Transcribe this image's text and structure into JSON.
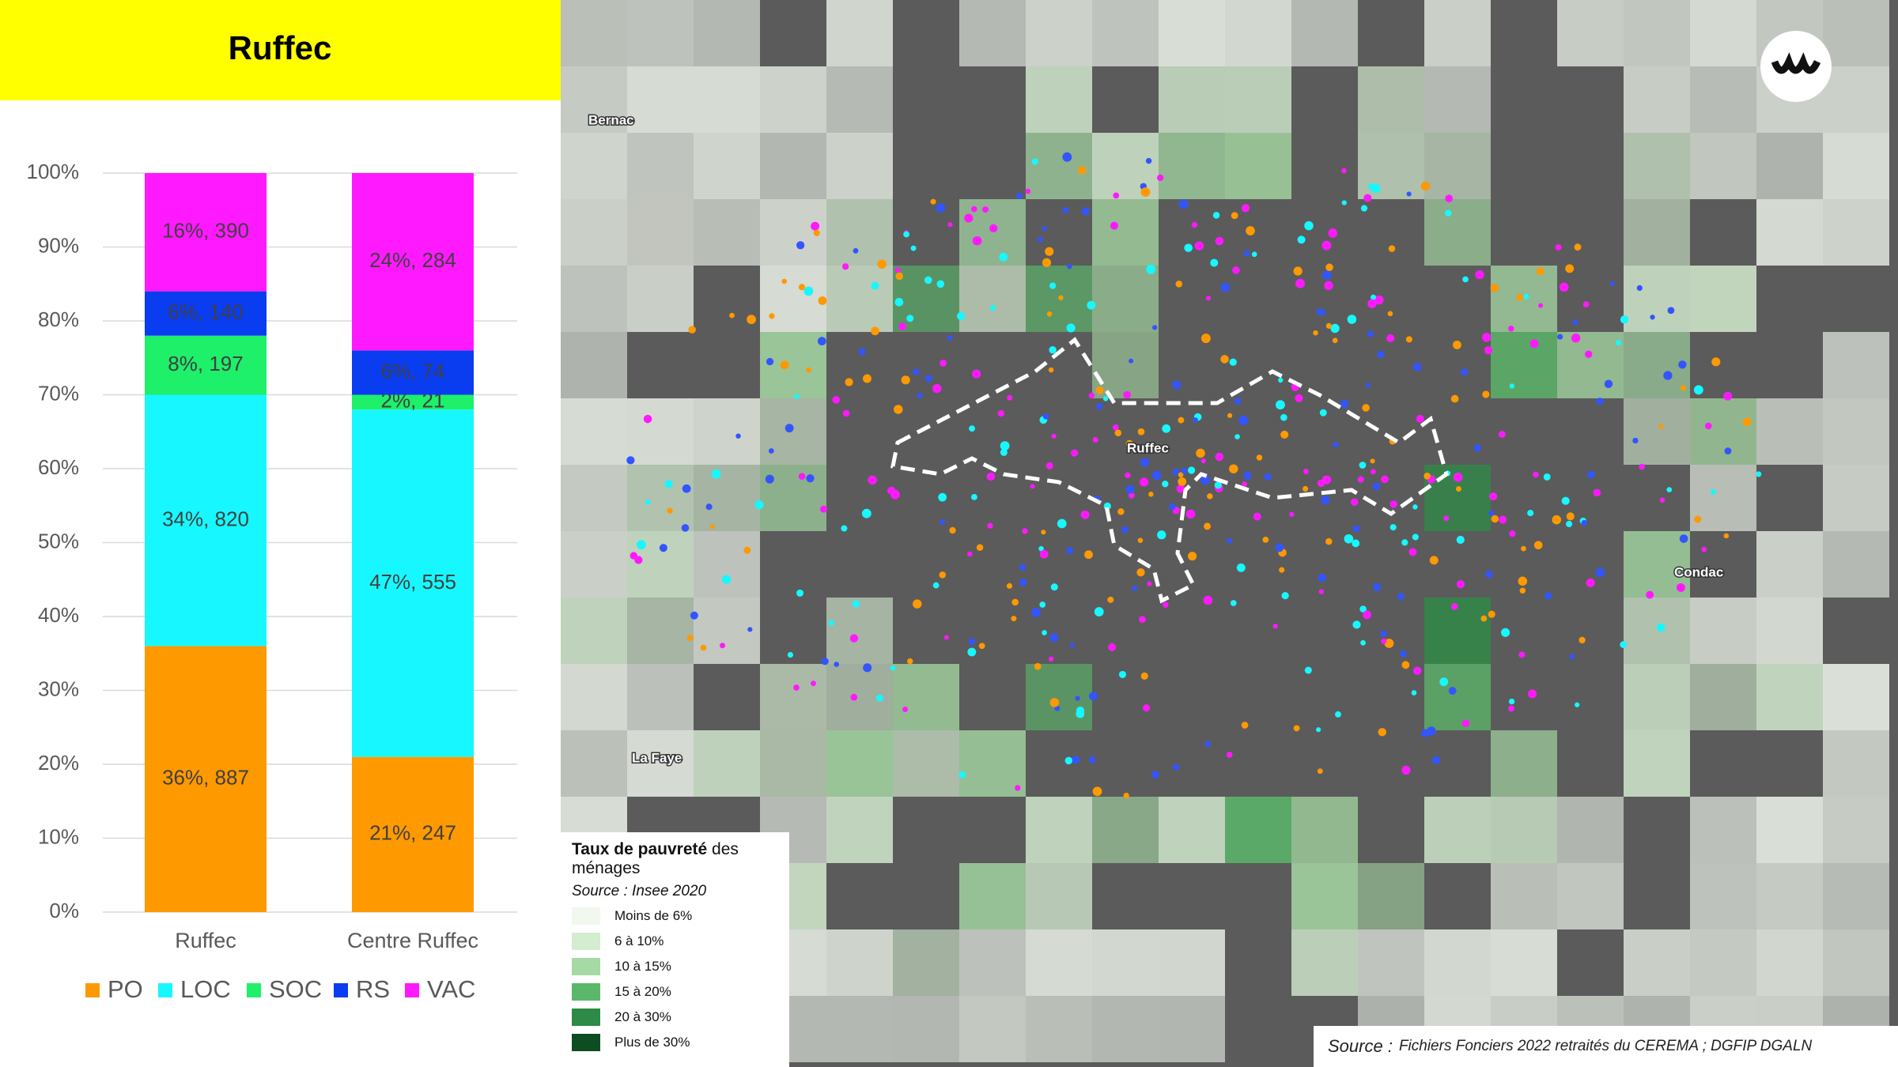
{
  "chart_data": {
    "type": "bar",
    "stacked": true,
    "title": "Ruffec",
    "categories": [
      "Ruffec",
      "Centre Ruffec"
    ],
    "series": [
      {
        "name": "PO",
        "color": "#ff9900",
        "values": [
          36,
          21
        ],
        "value_labels": [
          "36%, 887",
          "21%, 247"
        ]
      },
      {
        "name": "LOC",
        "color": "#17f7ff",
        "values": [
          34,
          47
        ],
        "value_labels": [
          "34%, 820",
          "47%, 555"
        ]
      },
      {
        "name": "SOC",
        "color": "#1ef06a",
        "values": [
          8,
          2
        ],
        "value_labels": [
          "8%, 197",
          "2%, 21"
        ]
      },
      {
        "name": "RS",
        "color": "#0a3cf0",
        "values": [
          6,
          6
        ],
        "value_labels": [
          "6%, 140",
          "6%, 74"
        ]
      },
      {
        "name": "VAC",
        "color": "#ff19ff",
        "values": [
          16,
          24
        ],
        "value_labels": [
          "16%, 390",
          "24%, 284"
        ]
      }
    ],
    "ylim": [
      0,
      100
    ],
    "yticks": [
      {
        "value": 0,
        "label": "0%"
      },
      {
        "value": 10,
        "label": "10%"
      },
      {
        "value": 20,
        "label": "20%"
      },
      {
        "value": 30,
        "label": "30%"
      },
      {
        "value": 40,
        "label": "40%"
      },
      {
        "value": 50,
        "label": "50%"
      },
      {
        "value": 60,
        "label": "60%"
      },
      {
        "value": 70,
        "label": "70%"
      },
      {
        "value": 80,
        "label": "80%"
      },
      {
        "value": 90,
        "label": "90%"
      },
      {
        "value": 100,
        "label": "100%"
      }
    ],
    "grid": true,
    "legend": "bottom"
  },
  "map": {
    "places": [
      "Bernac",
      "Ruffec",
      "Condac",
      "La Faye"
    ],
    "legend": {
      "title_bold": "Taux de pauvreté",
      "title_rest": "des ménages",
      "source": "Source : Insee 2020",
      "items": [
        {
          "label": "Moins de 6%",
          "color": "#f1f8ee"
        },
        {
          "label": "6 à 10%",
          "color": "#d4ecd0"
        },
        {
          "label": "10 à 15%",
          "color": "#a6daa4"
        },
        {
          "label": "15 à 20%",
          "color": "#5bb86a"
        },
        {
          "label": "20 à 30%",
          "color": "#2e8b47"
        },
        {
          "label": "Plus de 30%",
          "color": "#0d4d22"
        }
      ]
    },
    "source_label": "Source :",
    "source_text": "Fichiers Fonciers 2022 retraités du CEREMA ; DGFIP DGALN"
  }
}
